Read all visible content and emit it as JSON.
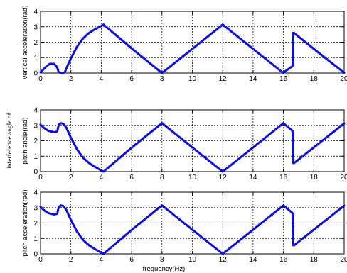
{
  "chart_data": [
    {
      "type": "line",
      "ylabel": "vertical acceleration(rad)",
      "xlabel": "",
      "xlim": [
        0,
        20
      ],
      "ylim": [
        0,
        4
      ],
      "xticks": [
        "0",
        "2",
        "4",
        "6",
        "8",
        "10",
        "12",
        "14",
        "16",
        "18",
        "20"
      ],
      "yticks": [
        "0",
        "1",
        "2",
        "3",
        "4"
      ],
      "grid": true,
      "series": [
        {
          "color": "#0a0aee",
          "x": [
            0.0,
            0.3,
            0.6,
            0.9,
            1.1,
            1.2,
            1.4,
            1.6,
            1.7,
            2.0,
            2.4,
            2.8,
            3.2,
            3.6,
            4.0,
            4.15,
            6.0,
            8.0,
            10.0,
            12.0,
            14.0,
            16.0,
            16.1,
            16.6,
            16.65,
            16.7,
            18.0,
            20.0
          ],
          "y": [
            0.05,
            0.35,
            0.6,
            0.6,
            0.35,
            0.05,
            0.0,
            0.05,
            0.3,
            0.95,
            1.7,
            2.25,
            2.6,
            2.85,
            3.05,
            3.14,
            1.6,
            0.0,
            1.57,
            3.14,
            1.57,
            0.0,
            0.1,
            0.45,
            2.6,
            2.6,
            1.57,
            0.02
          ]
        }
      ]
    },
    {
      "type": "line",
      "ylabel": "pitch angle(rad)",
      "ylabel_extra": "interference angle of",
      "xlabel": "",
      "xlim": [
        0,
        20
      ],
      "ylim": [
        0,
        4
      ],
      "xticks": [
        "0",
        "2",
        "4",
        "6",
        "8",
        "10",
        "12",
        "14",
        "16",
        "18",
        "20"
      ],
      "yticks": [
        "0",
        "1",
        "2",
        "3",
        "4"
      ],
      "grid": true,
      "series": [
        {
          "color": "#0a0aee",
          "x": [
            0.0,
            0.2,
            0.5,
            0.9,
            1.1,
            1.2,
            1.35,
            1.5,
            1.7,
            2.0,
            2.4,
            2.8,
            3.2,
            3.6,
            4.0,
            4.15,
            6.0,
            8.0,
            10.0,
            12.0,
            14.0,
            16.0,
            16.1,
            16.6,
            16.65,
            16.7,
            18.0,
            20.0
          ],
          "y": [
            3.05,
            2.85,
            2.65,
            2.55,
            2.6,
            3.05,
            3.14,
            3.1,
            2.85,
            2.2,
            1.45,
            0.9,
            0.55,
            0.3,
            0.08,
            0.0,
            1.55,
            3.14,
            1.57,
            0.0,
            1.57,
            3.14,
            3.05,
            2.65,
            0.55,
            0.55,
            1.57,
            3.12
          ]
        }
      ]
    },
    {
      "type": "line",
      "ylabel": "pitch acceleration(rad)",
      "xlabel": "frequency(Hz)",
      "xlim": [
        0,
        20
      ],
      "ylim": [
        0,
        4
      ],
      "xticks": [
        "0",
        "2",
        "4",
        "6",
        "8",
        "10",
        "12",
        "14",
        "16",
        "18",
        "20"
      ],
      "yticks": [
        "0",
        "1",
        "2",
        "3",
        "4"
      ],
      "grid": true,
      "series": [
        {
          "color": "#0a0aee",
          "x": [
            0.0,
            0.2,
            0.5,
            0.9,
            1.1,
            1.2,
            1.35,
            1.5,
            1.7,
            2.0,
            2.4,
            2.8,
            3.2,
            3.6,
            4.0,
            4.15,
            6.0,
            8.0,
            10.0,
            12.0,
            14.0,
            16.0,
            16.1,
            16.6,
            16.65,
            16.7,
            18.0,
            20.0
          ],
          "y": [
            3.05,
            2.85,
            2.65,
            2.55,
            2.6,
            3.05,
            3.14,
            3.1,
            2.85,
            2.2,
            1.45,
            0.9,
            0.55,
            0.3,
            0.08,
            0.0,
            1.55,
            3.14,
            1.57,
            0.0,
            1.57,
            3.14,
            3.05,
            2.65,
            0.55,
            0.55,
            1.57,
            3.12
          ]
        }
      ]
    }
  ]
}
